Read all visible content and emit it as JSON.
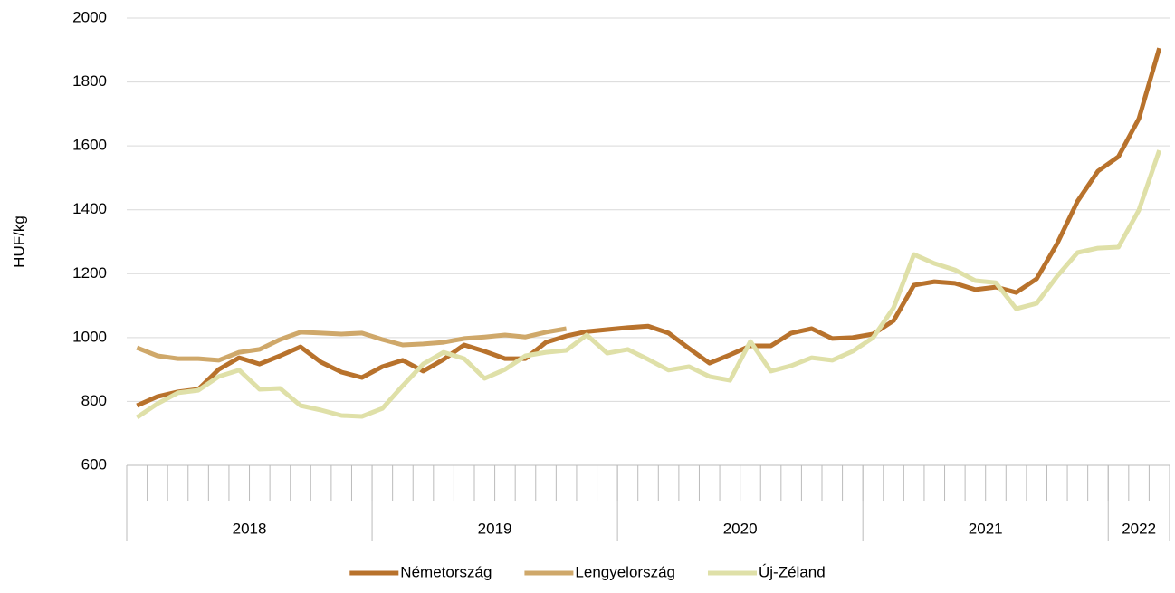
{
  "chart_data": {
    "type": "line",
    "y_label": "HUF/kg",
    "categories": [
      null,
      null,
      null,
      null,
      null,
      null,
      null,
      null,
      null,
      null,
      null,
      null,
      null,
      null,
      null,
      null,
      null,
      null,
      null,
      null,
      null,
      null,
      null,
      null,
      null,
      null,
      null,
      null,
      null,
      null,
      null,
      null,
      null,
      null,
      null,
      null,
      null,
      null,
      null,
      null,
      null,
      null,
      null,
      null,
      null,
      null,
      null,
      null,
      null,
      null,
      null
    ],
    "groups": [
      {
        "label": "2018",
        "span": 12
      },
      {
        "label": "2019",
        "span": 12
      },
      {
        "label": "2020",
        "span": 12
      },
      {
        "label": "2021",
        "span": 12
      },
      {
        "label": "2022",
        "span": 3
      }
    ],
    "ylim": [
      600,
      2000
    ],
    "yticks": [
      600,
      800,
      1000,
      1200,
      1400,
      1600,
      1800,
      2000
    ],
    "grid": true,
    "legend": "bottom",
    "series": [
      {
        "name": "Németország",
        "color": "#b8722c",
        "values": [
          787,
          815,
          830,
          838,
          900,
          937,
          917,
          943,
          971,
          923,
          892,
          875,
          909,
          929,
          895,
          932,
          977,
          957,
          934,
          934,
          985,
          1005,
          1019,
          1025,
          1031,
          1036,
          1014,
          966,
          920,
          946,
          974,
          974,
          1014,
          1028,
          997,
          1000,
          1011,
          1053,
          1164,
          1175,
          1170,
          1150,
          1158,
          1141,
          1184,
          1294,
          1427,
          1521,
          1566,
          1685,
          1906
        ]
      },
      {
        "name": "Lengyelország",
        "color": "#cfa86a",
        "values": [
          968,
          943,
          934,
          934,
          929,
          954,
          963,
          994,
          1017,
          1014,
          1011,
          1014,
          994,
          977,
          980,
          985,
          997,
          1002,
          1008,
          1002,
          1017,
          1028,
          null,
          null,
          null,
          null,
          null,
          null,
          null,
          null,
          null,
          null,
          null,
          null,
          null,
          null,
          null,
          null,
          null,
          null,
          null,
          null,
          null,
          null,
          null,
          null,
          null,
          null,
          null,
          null,
          null
        ]
      },
      {
        "name": "Új-Zéland",
        "color": "#dfe0a8",
        "values": [
          750,
          793,
          827,
          835,
          878,
          898,
          838,
          841,
          787,
          773,
          756,
          753,
          778,
          849,
          917,
          954,
          934,
          872,
          900,
          943,
          954,
          960,
          1008,
          951,
          963,
          932,
          898,
          909,
          878,
          866,
          988,
          895,
          912,
          937,
          929,
          957,
          1000,
          1093,
          1260,
          1232,
          1212,
          1178,
          1172,
          1090,
          1107,
          1192,
          1266,
          1280,
          1283,
          1399,
          1586
        ]
      }
    ]
  }
}
